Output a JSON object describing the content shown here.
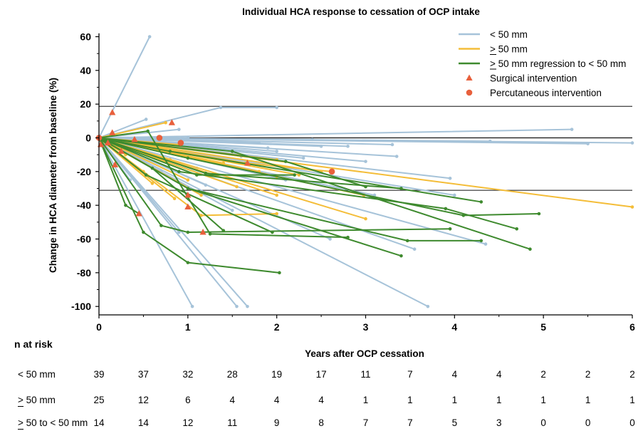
{
  "chart_data": {
    "type": "line",
    "title": "Individual HCA response to cessation of OCP intake",
    "xlabel": "Years after OCP cessation",
    "ylabel": "Change in HCA diameter from baseline (%)",
    "xlim": [
      0,
      6
    ],
    "ylim": [
      -105,
      62
    ],
    "x_ticks": [
      "0",
      "1",
      "2",
      "3",
      "4",
      "5",
      "6"
    ],
    "y_ticks": [
      "60",
      "40",
      "20",
      "0",
      "-20",
      "-40",
      "-60",
      "-80",
      "-100"
    ],
    "reference_lines_y": [
      0,
      18.7,
      -31.1
    ],
    "grid": false,
    "legend": {
      "position": "top-right",
      "items": [
        {
          "label": "< 50 mm",
          "kind": "line",
          "color": "#a6c3d9"
        },
        {
          "label": "> 50 mm",
          "underline_char": "> ",
          "kind": "line",
          "color": "#f4bd38"
        },
        {
          "label": "> 50 mm regression to < 50 mm",
          "kind": "line",
          "color": "#3e8a2e"
        },
        {
          "label": "Surgical intervention",
          "kind": "triangle",
          "color": "#e8603c"
        },
        {
          "label": "Percutaneous intervention",
          "kind": "circle",
          "color": "#e8603c"
        }
      ]
    },
    "colors": {
      "lt50": "#a6c3d9",
      "ge50": "#f4bd38",
      "regress": "#3e8a2e",
      "intervention": "#e8603c"
    },
    "series": [
      {
        "name": "< 50 mm",
        "color": "#a6c3d9",
        "lines": [
          [
            [
              0,
              0
            ],
            [
              0.57,
              60
            ]
          ],
          [
            [
              0,
              0
            ],
            [
              0.53,
              11
            ]
          ],
          [
            [
              0,
              0
            ],
            [
              0.9,
              5
            ]
          ],
          [
            [
              0,
              0
            ],
            [
              1.37,
              18
            ]
          ],
          [
            [
              1.37,
              18
            ],
            [
              2.0,
              18
            ]
          ],
          [
            [
              0,
              0
            ],
            [
              5.32,
              5
            ]
          ],
          [
            [
              0,
              0
            ],
            [
              6.0,
              -3
            ]
          ],
          [
            [
              0,
              0
            ],
            [
              5.5,
              -3.5
            ]
          ],
          [
            [
              0,
              0
            ],
            [
              4.4,
              -2
            ]
          ],
          [
            [
              0,
              0
            ],
            [
              3.3,
              -4
            ]
          ],
          [
            [
              0,
              0
            ],
            [
              2.8,
              -5
            ]
          ],
          [
            [
              0,
              0
            ],
            [
              3.35,
              -11
            ]
          ],
          [
            [
              0,
              0
            ],
            [
              3.95,
              -24
            ]
          ],
          [
            [
              0,
              0
            ],
            [
              4.0,
              -34
            ]
          ],
          [
            [
              0,
              0
            ],
            [
              4.35,
              -63
            ]
          ],
          [
            [
              0,
              0
            ],
            [
              3.55,
              -66
            ]
          ],
          [
            [
              0,
              0
            ],
            [
              3.7,
              -100
            ]
          ],
          [
            [
              0,
              0
            ],
            [
              1.05,
              -100
            ]
          ],
          [
            [
              0,
              0
            ],
            [
              1.55,
              -100
            ]
          ],
          [
            [
              0,
              0
            ],
            [
              1.67,
              -100
            ]
          ],
          [
            [
              0,
              0
            ],
            [
              0.9,
              -56
            ]
          ],
          [
            [
              0,
              0
            ],
            [
              1.2,
              -28
            ]
          ],
          [
            [
              0,
              0
            ],
            [
              1.5,
              -43
            ]
          ],
          [
            [
              0,
              0
            ],
            [
              2.6,
              -60
            ]
          ],
          [
            [
              0,
              0
            ],
            [
              2.1,
              -25
            ]
          ],
          [
            [
              0,
              0
            ],
            [
              1.9,
              -6
            ]
          ],
          [
            [
              0,
              0
            ],
            [
              0.7,
              -20
            ]
          ],
          [
            [
              0,
              0
            ],
            [
              2.0,
              -8
            ]
          ],
          [
            [
              0,
              0
            ],
            [
              1.8,
              -3
            ]
          ],
          [
            [
              0,
              0
            ],
            [
              2.4,
              -1
            ]
          ],
          [
            [
              0,
              0
            ],
            [
              0.35,
              -25
            ]
          ],
          [
            [
              0,
              0
            ],
            [
              2.5,
              -5
            ]
          ],
          [
            [
              0,
              0
            ],
            [
              3.0,
              -14
            ]
          ],
          [
            [
              0,
              0
            ],
            [
              1.1,
              -18
            ]
          ],
          [
            [
              0,
              0
            ],
            [
              0.2,
              -14
            ]
          ],
          [
            [
              0,
              0
            ],
            [
              1.0,
              0
            ]
          ],
          [
            [
              0,
              0
            ],
            [
              1.6,
              -11
            ]
          ],
          [
            [
              0,
              0
            ],
            [
              3.1,
              -34
            ]
          ],
          [
            [
              0,
              0
            ],
            [
              2.3,
              -12
            ]
          ]
        ]
      },
      {
        "name": "> 50 mm",
        "color": "#f4bd38",
        "lines": [
          [
            [
              0,
              0
            ],
            [
              0.75,
              9
            ]
          ],
          [
            [
              0,
              0
            ],
            [
              0.3,
              -10
            ]
          ],
          [
            [
              0,
              0
            ],
            [
              0.5,
              -20
            ]
          ],
          [
            [
              0,
              0
            ],
            [
              0.85,
              -36
            ]
          ],
          [
            [
              0,
              0
            ],
            [
              0.8,
              -13
            ]
          ],
          [
            [
              0,
              0
            ],
            [
              1.15,
              -46
            ]
          ],
          [
            [
              1.15,
              -46
            ],
            [
              2.0,
              -45
            ]
          ],
          [
            [
              0,
              0
            ],
            [
              1.55,
              -29
            ]
          ],
          [
            [
              0,
              0
            ],
            [
              1.15,
              -34
            ]
          ],
          [
            [
              0,
              0
            ],
            [
              1.65,
              -15
            ]
          ],
          [
            [
              1.65,
              -15
            ],
            [
              2.62,
              -20
            ]
          ],
          [
            [
              0,
              0
            ],
            [
              2.0,
              -23
            ]
          ],
          [
            [
              0,
              0
            ],
            [
              6.0,
              -41
            ]
          ],
          [
            [
              0,
              0
            ],
            [
              2.98,
              -34
            ]
          ],
          [
            [
              0,
              0
            ],
            [
              3.0,
              -48
            ]
          ],
          [
            [
              0,
              0
            ],
            [
              2.0,
              -13
            ]
          ],
          [
            [
              0,
              0
            ],
            [
              2.25,
              -22
            ]
          ],
          [
            [
              0,
              0
            ],
            [
              0.9,
              -4
            ]
          ],
          [
            [
              0,
              0
            ],
            [
              1.4,
              -15
            ]
          ],
          [
            [
              0,
              0
            ],
            [
              1.8,
              -20
            ]
          ],
          [
            [
              0,
              0
            ],
            [
              1.0,
              -25
            ]
          ],
          [
            [
              0,
              0
            ],
            [
              0.2,
              -3
            ]
          ],
          [
            [
              0,
              0
            ],
            [
              0.6,
              -27
            ]
          ],
          [
            [
              0,
              0
            ],
            [
              2.5,
              -20
            ]
          ],
          [
            [
              0,
              0
            ],
            [
              2.0,
              -34
            ]
          ]
        ]
      },
      {
        "name": "> 50 mm regression to < 50 mm",
        "color": "#3e8a2e",
        "lines": [
          [
            [
              0,
              0
            ],
            [
              0.3,
              -40
            ]
          ],
          [
            [
              0.3,
              -40
            ],
            [
              0.45,
              -45
            ]
          ],
          [
            [
              0,
              0
            ],
            [
              0.5,
              -56
            ]
          ],
          [
            [
              0.5,
              -56
            ],
            [
              1.0,
              -74
            ]
          ],
          [
            [
              1.0,
              -74
            ],
            [
              2.03,
              -80
            ]
          ],
          [
            [
              0,
              0
            ],
            [
              0.55,
              4
            ]
          ],
          [
            [
              0.55,
              4
            ],
            [
              1.25,
              -57
            ]
          ],
          [
            [
              1.25,
              -57
            ],
            [
              2.8,
              -59
            ]
          ],
          [
            [
              0,
              0
            ],
            [
              0.53,
              -22
            ]
          ],
          [
            [
              0.53,
              -22
            ],
            [
              1.95,
              -56
            ]
          ],
          [
            [
              0,
              0
            ],
            [
              0.6,
              -18
            ]
          ],
          [
            [
              0.6,
              -18
            ],
            [
              1.4,
              -55
            ]
          ],
          [
            [
              0,
              0
            ],
            [
              1.0,
              -30
            ]
          ],
          [
            [
              1.0,
              -30
            ],
            [
              3.4,
              -70
            ]
          ],
          [
            [
              1.0,
              -30
            ],
            [
              3.47,
              -61
            ]
          ],
          [
            [
              3.47,
              -61
            ],
            [
              4.3,
              -61
            ]
          ],
          [
            [
              0,
              0
            ],
            [
              1.0,
              -12
            ]
          ],
          [
            [
              1.0,
              -12
            ],
            [
              4.1,
              -46
            ]
          ],
          [
            [
              4.1,
              -46
            ],
            [
              4.95,
              -45
            ]
          ],
          [
            [
              0,
              0
            ],
            [
              1.5,
              -8
            ]
          ],
          [
            [
              1.5,
              -8
            ],
            [
              4.85,
              -66
            ]
          ],
          [
            [
              0,
              0
            ],
            [
              0.9,
              -20
            ]
          ],
          [
            [
              0.9,
              -20
            ],
            [
              3.9,
              -42
            ]
          ],
          [
            [
              3.9,
              -42
            ],
            [
              4.7,
              -54
            ]
          ],
          [
            [
              0,
              0
            ],
            [
              0.8,
              -8
            ]
          ],
          [
            [
              0.8,
              -8
            ],
            [
              4.3,
              -38
            ]
          ],
          [
            [
              0,
              0
            ],
            [
              1.2,
              -21
            ]
          ],
          [
            [
              1.2,
              -21
            ],
            [
              3.4,
              -30
            ]
          ],
          [
            [
              0,
              0
            ],
            [
              2.1,
              -14
            ]
          ],
          [
            [
              2.1,
              -14
            ],
            [
              3.0,
              -29
            ]
          ],
          [
            [
              0,
              0
            ],
            [
              0.7,
              -52
            ]
          ],
          [
            [
              0.7,
              -52
            ],
            [
              1.0,
              -56
            ]
          ],
          [
            [
              1.0,
              -56
            ],
            [
              3.95,
              -54
            ]
          ],
          [
            [
              0,
              0
            ],
            [
              1.1,
              -22
            ]
          ],
          [
            [
              1.1,
              -22
            ],
            [
              2.2,
              -22
            ]
          ]
        ]
      }
    ],
    "markers": {
      "surgical": [
        [
          0.15,
          15
        ],
        [
          0.15,
          3
        ],
        [
          0.1,
          -3
        ],
        [
          0.25,
          -8
        ],
        [
          0.18,
          -16
        ],
        [
          0.02,
          -4
        ],
        [
          0.45,
          -45
        ],
        [
          0.82,
          9
        ],
        [
          1.0,
          -34
        ],
        [
          1.0,
          -41
        ],
        [
          1.17,
          -56
        ],
        [
          1.67,
          -15
        ],
        [
          0.4,
          -1
        ]
      ],
      "percutaneous": [
        [
          0.68,
          0
        ],
        [
          0.92,
          -3
        ],
        [
          2.62,
          -20
        ],
        [
          0,
          0
        ]
      ]
    }
  },
  "risk_table": {
    "title": "n at  risk",
    "time_points": [
      0,
      0.5,
      1,
      1.5,
      2,
      2.5,
      3,
      3.5,
      4,
      4.5,
      5,
      5.5,
      6
    ],
    "rows": [
      {
        "label": "< 50 mm",
        "values": [
          "39",
          "37",
          "32",
          "28",
          "19",
          "17",
          "11",
          "7",
          "4",
          "4",
          "2",
          "2",
          "2"
        ]
      },
      {
        "label": "> 50 mm",
        "values": [
          "25",
          "12",
          "6",
          "4",
          "4",
          "4",
          "1",
          "1",
          "1",
          "1",
          "1",
          "1",
          "1"
        ]
      },
      {
        "label": "> 50 to < 50 mm",
        "values": [
          "14",
          "14",
          "12",
          "11",
          "9",
          "8",
          "7",
          "7",
          "5",
          "3",
          "0",
          "0",
          "0"
        ]
      }
    ]
  }
}
